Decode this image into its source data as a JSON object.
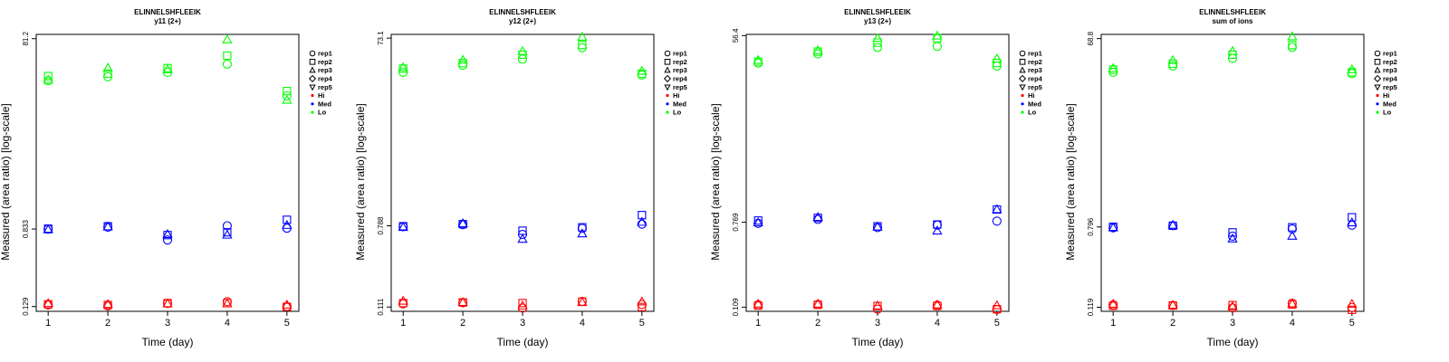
{
  "chart_data": [
    {
      "type": "scatter",
      "title": "ELINNELSHFLEEIK",
      "subtitle": "y11 (2+)",
      "xlabel": "Time (day)",
      "ylabel": "Measured (area ratio) [log-scale]",
      "ytick_labels": [
        "0.129",
        "0.833",
        "81.2"
      ],
      "xticks": [
        1,
        2,
        3,
        4,
        5
      ],
      "xlim": [
        0.8,
        5.2
      ],
      "ylim": [
        0.115,
        90
      ],
      "legend": [
        "rep1",
        "rep2",
        "rep3",
        "rep4",
        "rep5",
        "Hi",
        "Med",
        "Lo"
      ],
      "points": [
        {
          "group": "Hi",
          "rep": "rep1",
          "values": [
            0.134,
            0.131,
            0.139,
            0.145,
            0.129
          ]
        },
        {
          "group": "Hi",
          "rep": "rep2",
          "values": [
            0.136,
            0.134,
            0.14,
            0.14,
            0.128
          ]
        },
        {
          "group": "Hi",
          "rep": "rep3",
          "values": [
            0.139,
            0.136,
            0.138,
            0.138,
            0.134
          ]
        },
        {
          "group": "Med",
          "rep": "rep1",
          "values": [
            0.83,
            0.87,
            0.64,
            0.9,
            0.85
          ]
        },
        {
          "group": "Med",
          "rep": "rep2",
          "values": [
            0.84,
            0.89,
            0.72,
            0.77,
            1.04
          ]
        },
        {
          "group": "Med",
          "rep": "rep3",
          "values": [
            0.82,
            0.88,
            0.73,
            0.72,
            0.91
          ]
        },
        {
          "group": "Lo",
          "rep": "rep1",
          "values": [
            29.5,
            32.5,
            36.0,
            44.0,
            20.5
          ]
        },
        {
          "group": "Lo",
          "rep": "rep2",
          "values": [
            33.0,
            35.0,
            40.0,
            54.0,
            23.0
          ]
        },
        {
          "group": "Lo",
          "rep": "rep3",
          "values": [
            30.0,
            40.0,
            38.5,
            79.0,
            18.5
          ]
        }
      ]
    },
    {
      "type": "scatter",
      "title": "ELINNELSHFLEEIK",
      "subtitle": "y12 (2+)",
      "xlabel": "Time (day)",
      "ylabel": "Measured (area ratio) [log-scale]",
      "ytick_labels": [
        "0.111",
        "0.788",
        "73.1"
      ],
      "xticks": [
        1,
        2,
        3,
        4,
        5
      ],
      "xlim": [
        0.8,
        5.2
      ],
      "ylim": [
        0.1,
        80
      ],
      "legend": [
        "rep1",
        "rep2",
        "rep3",
        "rep4",
        "rep5",
        "Hi",
        "Med",
        "Lo"
      ],
      "points": [
        {
          "group": "Hi",
          "rep": "rep1",
          "values": [
            0.12,
            0.123,
            0.108,
            0.127,
            0.118
          ]
        },
        {
          "group": "Hi",
          "rep": "rep2",
          "values": [
            0.122,
            0.124,
            0.122,
            0.126,
            0.111
          ]
        },
        {
          "group": "Hi",
          "rep": "rep3",
          "values": [
            0.128,
            0.124,
            0.114,
            0.124,
            0.126
          ]
        },
        {
          "group": "Med",
          "rep": "rep1",
          "values": [
            0.77,
            0.81,
            0.64,
            0.74,
            0.82
          ]
        },
        {
          "group": "Med",
          "rep": "rep2",
          "values": [
            0.78,
            0.82,
            0.7,
            0.76,
            1.02
          ]
        },
        {
          "group": "Med",
          "rep": "rep3",
          "values": [
            0.76,
            0.83,
            0.57,
            0.65,
            0.86
          ]
        },
        {
          "group": "Lo",
          "rep": "rep1",
          "values": [
            32.0,
            38.0,
            44.0,
            58.0,
            30.0
          ]
        },
        {
          "group": "Lo",
          "rep": "rep2",
          "values": [
            35.0,
            40.0,
            49.0,
            62.0,
            31.0
          ]
        },
        {
          "group": "Lo",
          "rep": "rep3",
          "values": [
            36.0,
            43.0,
            53.0,
            75.0,
            33.0
          ]
        }
      ]
    },
    {
      "type": "scatter",
      "title": "ELINNELSHFLEEIK",
      "subtitle": "y13 (2+)",
      "xlabel": "Time (day)",
      "ylabel": "Measured (area ratio) [log-scale]",
      "ytick_labels": [
        "0.109",
        "0.769",
        "56.4"
      ],
      "xticks": [
        1,
        2,
        3,
        4,
        5
      ],
      "xlim": [
        0.8,
        5.2
      ],
      "ylim": [
        0.099,
        58
      ],
      "legend": [
        "rep1",
        "rep2",
        "rep3",
        "rep4",
        "rep5",
        "Hi",
        "Med",
        "Lo"
      ],
      "points": [
        {
          "group": "Hi",
          "rep": "rep1",
          "values": [
            0.115,
            0.116,
            0.104,
            0.114,
            0.103
          ]
        },
        {
          "group": "Hi",
          "rep": "rep2",
          "values": [
            0.113,
            0.115,
            0.112,
            0.112,
            0.104
          ]
        },
        {
          "group": "Hi",
          "rep": "rep3",
          "values": [
            0.117,
            0.117,
            0.112,
            0.115,
            0.113
          ]
        },
        {
          "group": "Med",
          "rep": "rep1",
          "values": [
            0.75,
            0.82,
            0.68,
            0.72,
            0.79
          ]
        },
        {
          "group": "Med",
          "rep": "rep2",
          "values": [
            0.8,
            0.85,
            0.7,
            0.73,
            1.03
          ]
        },
        {
          "group": "Med",
          "rep": "rep3",
          "values": [
            0.76,
            0.86,
            0.69,
            0.63,
            1.03
          ]
        },
        {
          "group": "Lo",
          "rep": "rep1",
          "values": [
            30.0,
            37.0,
            43.0,
            44.0,
            28.0
          ]
        },
        {
          "group": "Lo",
          "rep": "rep2",
          "values": [
            31.0,
            39.0,
            48.0,
            53.0,
            30.0
          ]
        },
        {
          "group": "Lo",
          "rep": "rep3",
          "values": [
            32.0,
            40.0,
            53.0,
            56.0,
            33.0
          ]
        }
      ]
    },
    {
      "type": "scatter",
      "title": "ELINNELSHFLEEIK",
      "subtitle": "sum of ions",
      "xlabel": "Time (day)",
      "ylabel": "Measured (area ratio) [log-scale]",
      "ytick_labels": [
        "0.119",
        "0.796",
        "68.8"
      ],
      "xticks": [
        1,
        2,
        3,
        4,
        5
      ],
      "xlim": [
        0.8,
        5.2
      ],
      "ylim": [
        0.108,
        76
      ],
      "legend": [
        "rep1",
        "rep2",
        "rep3",
        "rep4",
        "rep5",
        "Hi",
        "Med",
        "Lo"
      ],
      "points": [
        {
          "group": "Hi",
          "rep": "rep1",
          "values": [
            0.126,
            0.124,
            0.117,
            0.131,
            0.118
          ]
        },
        {
          "group": "Hi",
          "rep": "rep2",
          "values": [
            0.123,
            0.124,
            0.125,
            0.127,
            0.112
          ]
        },
        {
          "group": "Hi",
          "rep": "rep3",
          "values": [
            0.128,
            0.125,
            0.121,
            0.129,
            0.128
          ]
        },
        {
          "group": "Med",
          "rep": "rep1",
          "values": [
            0.78,
            0.82,
            0.64,
            0.76,
            0.83
          ]
        },
        {
          "group": "Med",
          "rep": "rep2",
          "values": [
            0.8,
            0.82,
            0.7,
            0.79,
            1.0
          ]
        },
        {
          "group": "Med",
          "rep": "rep3",
          "values": [
            0.78,
            0.83,
            0.6,
            0.64,
            0.88
          ]
        },
        {
          "group": "Lo",
          "rep": "rep1",
          "values": [
            31.0,
            36.0,
            43.0,
            56.0,
            30.0
          ]
        },
        {
          "group": "Lo",
          "rep": "rep2",
          "values": [
            33.0,
            38.0,
            47.0,
            59.0,
            31.0
          ]
        },
        {
          "group": "Lo",
          "rep": "rep3",
          "values": [
            34.0,
            41.0,
            51.0,
            72.0,
            33.0
          ]
        }
      ]
    }
  ],
  "colors": {
    "Hi": "#ff0000",
    "Med": "#0000ff",
    "Lo": "#00ff00",
    "axis": "#000000",
    "background": "#ffffff"
  },
  "marker_shapes": {
    "rep1": "circle",
    "rep2": "square",
    "rep3": "triangle-up",
    "rep4": "diamond",
    "rep5": "triangle-down"
  }
}
